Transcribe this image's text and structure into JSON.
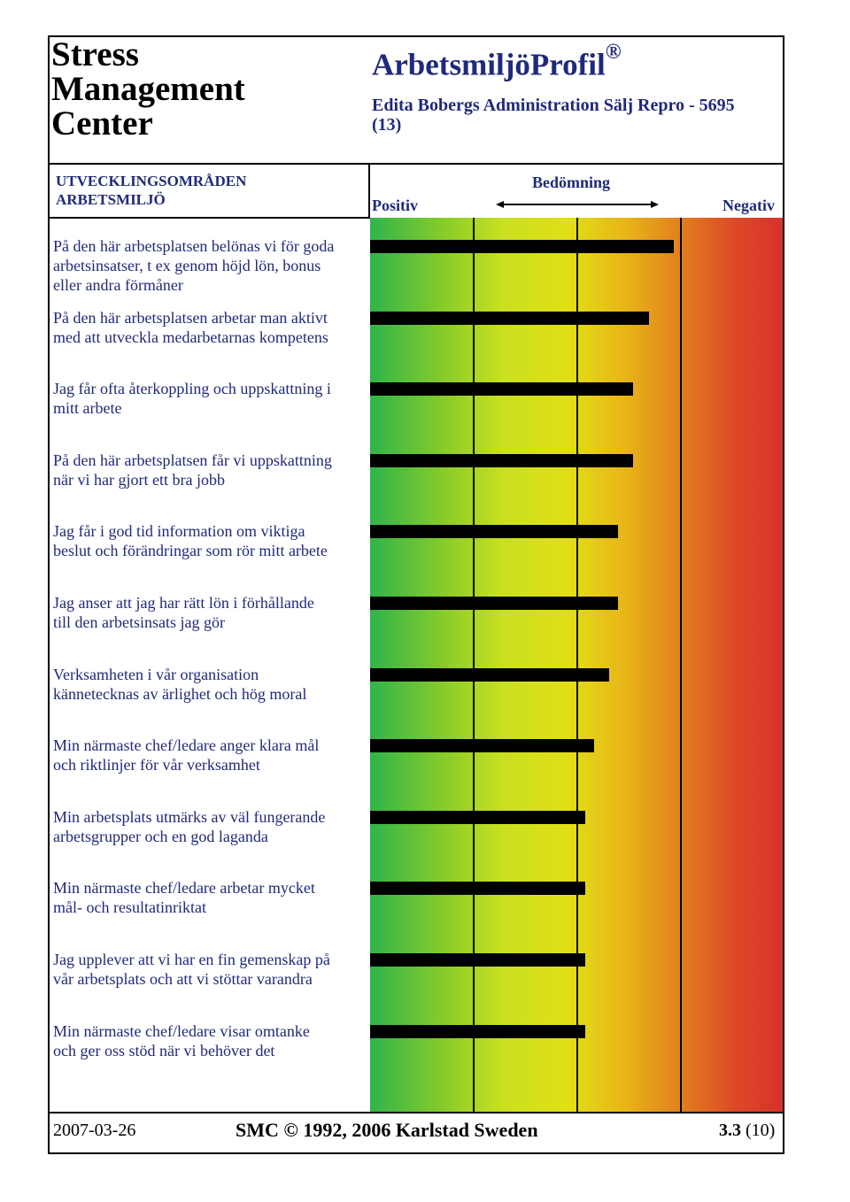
{
  "header": {
    "org_line1": "Stress",
    "org_line2": "Management",
    "org_line3": "Center",
    "app_title": "ArbetsmiljöProfil",
    "registered_mark": "®",
    "subtitle": "Edita Bobergs Administration Sälj Repro - 5695 (13)"
  },
  "section": {
    "line1": "UTVECKLINGSOMRÅDEN",
    "line2": "ARBETSMILJÖ"
  },
  "scale": {
    "heading": "Bedömning",
    "positive": "Positiv",
    "negative": "Negativ"
  },
  "chart_data": {
    "type": "bar",
    "orientation": "horizontal",
    "xlim": [
      0,
      4
    ],
    "grid": true,
    "categories": [
      [
        "På den här arbetsplatsen belönas vi för goda",
        "arbetsinsatser, t ex genom höjd lön, bonus",
        "eller andra förmåner"
      ],
      [
        "På den här arbetsplatsen arbetar man aktivt",
        "med att utveckla medarbetarnas kompetens"
      ],
      [
        "Jag får ofta återkoppling och uppskattning i",
        "mitt arbete"
      ],
      [
        "På den här arbetsplatsen får vi uppskattning",
        "när vi har gjort ett bra jobb"
      ],
      [
        "Jag får i god tid information om viktiga",
        "beslut och förändringar som rör mitt arbete"
      ],
      [
        "Jag anser att jag har rätt lön i förhållande",
        "till den arbetsinsats jag gör"
      ],
      [
        "Verksamheten i vår organisation",
        "kännetecknas av ärlighet och hög moral"
      ],
      [
        "Min närmaste chef/ledare anger klara mål",
        "och riktlinjer för vår verksamhet"
      ],
      [
        "Min arbetsplats utmärks av väl fungerande",
        "arbetsgrupper och en god laganda"
      ],
      [
        "Min närmaste chef/ledare arbetar mycket",
        "mål- och resultatinriktat"
      ],
      [
        "Jag upplever att vi har en fin gemenskap på",
        "vår arbetsplats och att vi stöttar varandra"
      ],
      [
        "Min närmaste chef/ledare visar omtanke",
        "och ger oss stöd när vi behöver det"
      ]
    ],
    "values": [
      2.93,
      2.69,
      2.54,
      2.54,
      2.39,
      2.39,
      2.31,
      2.16,
      2.08,
      2.08,
      2.08,
      2.08
    ],
    "colors": {
      "bar": "#000000",
      "scale_positive": "#2fb44a",
      "scale_middle": "#e2df16",
      "scale_negative": "#d8312c"
    }
  },
  "footer": {
    "date": "2007-03-26",
    "copyright": "SMC © 1992, 2006 Karlstad Sweden",
    "page_number": "3.3",
    "page_total": "(10)"
  }
}
